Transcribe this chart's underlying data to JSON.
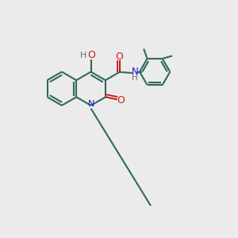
{
  "bg_color": "#ebebeb",
  "bond_color": "#2d6b5a",
  "N_color": "#1a1acc",
  "O_color": "#cc1a1a",
  "H_color": "#707070",
  "line_width": 1.5,
  "figsize": [
    3.0,
    3.0
  ],
  "dpi": 100,
  "xlim": [
    0,
    10
  ],
  "ylim": [
    0,
    10
  ]
}
